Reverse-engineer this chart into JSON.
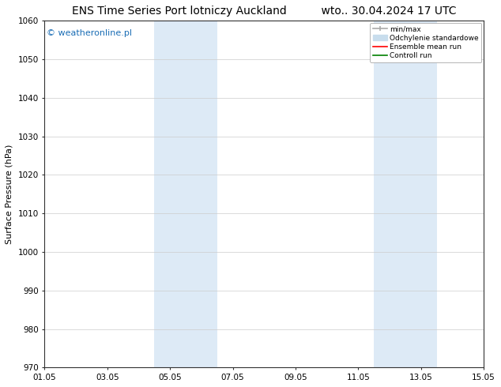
{
  "title_left": "ENS Time Series Port lotniczy Auckland",
  "title_right": "wto.. 30.04.2024 17 UTC",
  "ylabel": "Surface Pressure (hPa)",
  "ylim": [
    970,
    1060
  ],
  "yticks": [
    970,
    980,
    990,
    1000,
    1010,
    1020,
    1030,
    1040,
    1050,
    1060
  ],
  "xlim_start": 0,
  "xlim_end": 14,
  "xtick_labels": [
    "01.05",
    "03.05",
    "05.05",
    "07.05",
    "09.05",
    "11.05",
    "13.05",
    "15.05"
  ],
  "xtick_positions": [
    0,
    2,
    4,
    6,
    8,
    10,
    12,
    14
  ],
  "shaded_bands": [
    {
      "x_start": 3.5,
      "x_end": 5.5
    },
    {
      "x_start": 10.5,
      "x_end": 12.5
    }
  ],
  "shade_color": "#ddeaf6",
  "watermark_text": "© weatheronline.pl",
  "watermark_color": "#1a6db5",
  "legend_entries": [
    {
      "label": "min/max",
      "color": "#aaaaaa",
      "lw": 1.2,
      "style": "minmax"
    },
    {
      "label": "Odchylenie standardowe",
      "color": "#c8dded",
      "lw": 8,
      "style": "thick"
    },
    {
      "label": "Ensemble mean run",
      "color": "red",
      "lw": 1.2,
      "style": "line"
    },
    {
      "label": "Controll run",
      "color": "green",
      "lw": 1.2,
      "style": "line"
    }
  ],
  "bg_color": "#ffffff",
  "grid_color": "#cccccc",
  "title_fontsize": 10,
  "label_fontsize": 8,
  "tick_fontsize": 7.5
}
